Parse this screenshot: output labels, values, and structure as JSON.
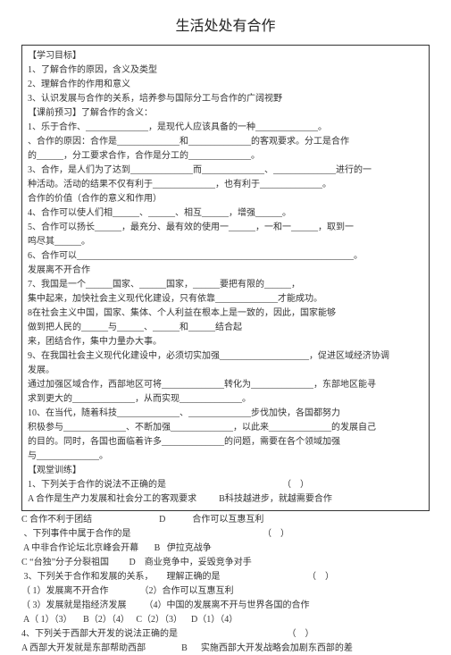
{
  "title": "生活处处有合作",
  "boxed": [
    "【学习目标】",
    "1、了解合作的原因，含义及类型",
    "2、理解合作的作用和意义",
    "3、认识发展与合作的关系，培养参与国际分工与合作的广阔视野",
    "【课前预习】了解合作的含义：",
    "1、乐于合作、______________，是现代人应该具备的一种______________。",
    "、合作的原因：合作是______________和______________的客观要求。分工是合作",
    "的______，分工要求合作，合作是分工的______________。",
    "3、合作，是人们为了达到______________而______________、______________进行的一",
    "种活动。活动的结果不仅有利于______________，也有利于______________。",
    "合作的价值（合作的意义和作用）",
    "4、合作可以使人们相______、______、相互______，增强______。",
    "5、合作可以扬长______，最充分、最有效的使用一______，一和一______，取到一",
    "鸣尽其______。",
    "6、合作可以______________________________________________________________。",
    "发展离不开合作",
    "7、我国是一个______国家、______国家，______要把有限的______，",
    "集中起来，加快社会主义现代化建设，只有依靠______________才能成功。",
    "8在社会主义中国，国家、集体、个人利益在根本上是一致的，因此，国家能够",
    "做到把人民的______与______、______和______结合起",
    "来，团结合作，集中力量办大事。",
    "9、在我国社会主义现代化建设中，必须切实加强____________________，促进区域经济协调",
    "发展。",
    "通过加强区域合作，西部地区可将______________转化为______________，东部地区能寻",
    "求到更大的______________，从而实现______________。",
    "10、在当代，随着科技______________、______________步伐加快，各国都努力",
    "积极参与______________、不断加强______________，以此来______________的发展自己",
    "的目的。同时，各国也面临着许多______________的问题，需要在各个领域加强",
    "与______________。",
    "【观堂训练】",
    "1、下列关于合作的说法不正确的是                                                    （    ）",
    "A 合作是生产力发展和社会分工的客观要求          B科技越进步，就越需要合作"
  ],
  "after": [
    "C 合作不利于团结                              D            合作可以互惠互利",
    " 、下列事件中属于合作的是                                                           （    ）",
    " A 中非合作论坛北京峰会开幕       B   伊拉克战争",
    "C “台独”分子分裂祖国         D    商业竞争中，妥毁竞争对手",
    " 3、下列关于合作和发展的关系，      理解正确的是                                       （    ）",
    "（ 1）发展离不开合作              （2）合作可以互惠互利",
    "（ 3）发展就是指经济发展        （4）中国的发展离不开与世界各国的合作",
    " A（ 1）（3）     B（2）（4）   C（2）（3）    D（1）（4）",
    "4、下列关于西部大开发的说法正确的是                                                 （    ）",
    "A 西部大开发就是东部帮助西部                B      实施西部大开发战略会加剧东西部的差"
  ]
}
